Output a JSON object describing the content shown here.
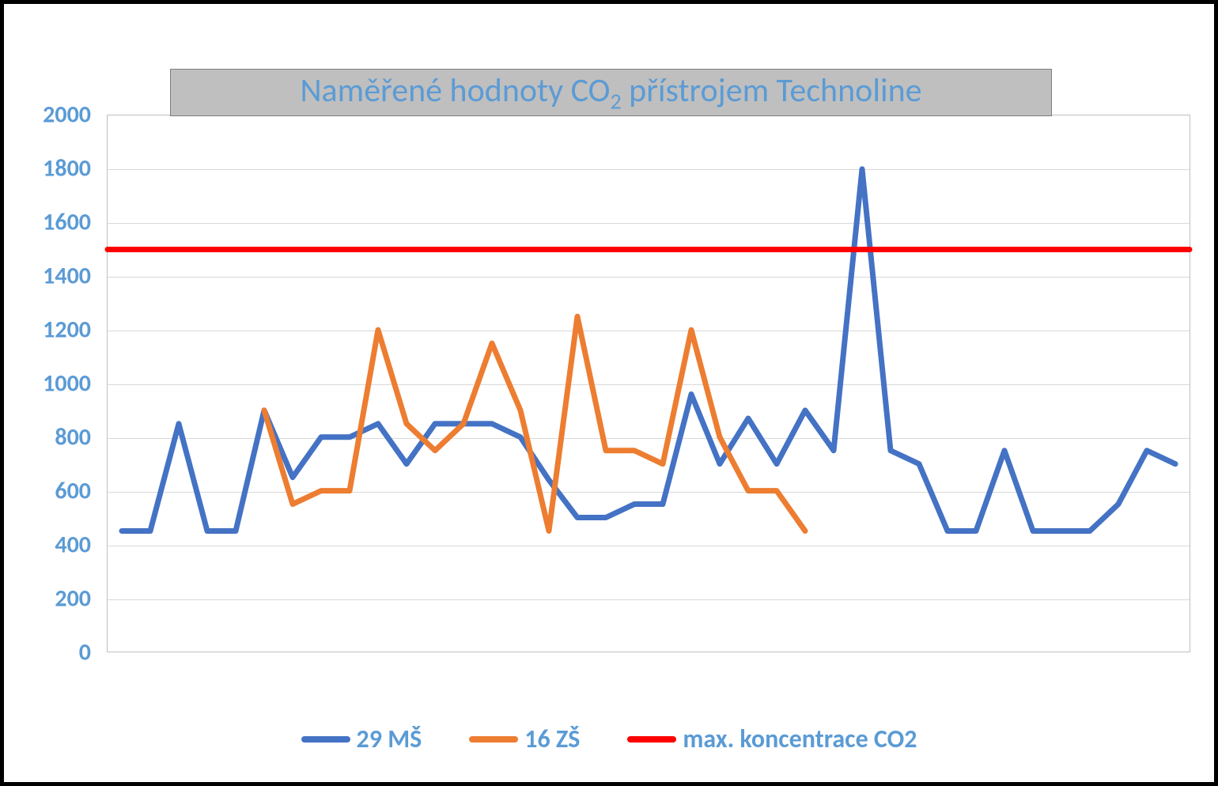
{
  "chart": {
    "type": "line",
    "title_html": "Naměřené hodnoty CO<sub>2</sub> přístrojem Technoline",
    "title_color": "#5b9bd5",
    "title_fontsize": 42,
    "title_bg": "#bfbfbf",
    "background_color": "#ffffff",
    "outer_border_color": "#000000",
    "plot_border_color": "#bfbfbf",
    "grid_color": "#d9d9d9",
    "axis_label_color": "#5b9bd5",
    "axis_label_fontsize": 30,
    "ylim": [
      0,
      2000
    ],
    "ytick_step": 200,
    "yticks": [
      0,
      200,
      400,
      600,
      800,
      1000,
      1200,
      1400,
      1600,
      1800,
      2000
    ],
    "x_count": 38,
    "line_width": 7,
    "series": [
      {
        "name": "29 MŠ",
        "color": "#4472c4",
        "start_index": 0,
        "values": [
          450,
          450,
          850,
          450,
          450,
          900,
          650,
          800,
          800,
          850,
          700,
          850,
          850,
          850,
          800,
          640,
          500,
          500,
          550,
          550,
          960,
          700,
          870,
          700,
          900,
          750,
          1800,
          750,
          700,
          450,
          450,
          750,
          450,
          450,
          450,
          550,
          750,
          700
        ]
      },
      {
        "name": "16 ZŠ",
        "color": "#ed7d31",
        "start_index": 5,
        "values": [
          900,
          550,
          600,
          600,
          1200,
          850,
          750,
          850,
          1150,
          900,
          450,
          1250,
          750,
          750,
          700,
          1200,
          800,
          600,
          600,
          450
        ]
      },
      {
        "name": "max. koncentrace CO2",
        "color": "#ff0000",
        "is_reference_line": true,
        "reference_value": 1500
      }
    ],
    "legend": {
      "position": "bottom",
      "label_color": "#5b9bd5",
      "label_fontsize": 32,
      "swatch_width": 62,
      "swatch_height": 8
    }
  }
}
